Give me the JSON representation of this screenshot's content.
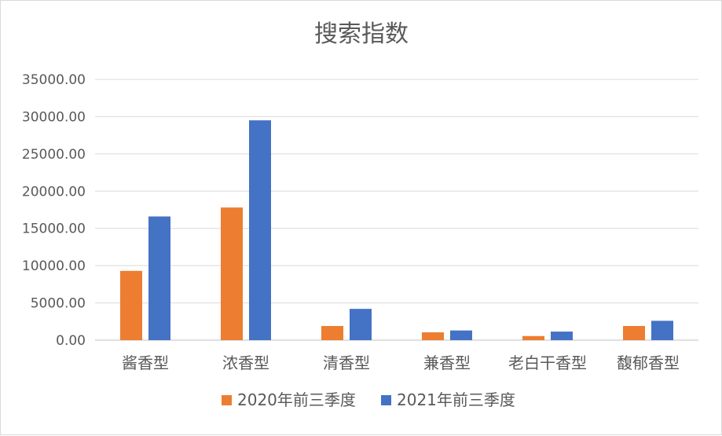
{
  "chart_data": {
    "type": "bar",
    "title": "搜索指数",
    "categories": [
      "酱香型",
      "浓香型",
      "清香型",
      "兼香型",
      "老白干香型",
      "馥郁香型"
    ],
    "series": [
      {
        "name": "2020年前三季度",
        "color": "#ED7D31",
        "values": [
          9300,
          17800,
          1900,
          1050,
          550,
          1900
        ]
      },
      {
        "name": "2021年前三季度",
        "color": "#4472C4",
        "values": [
          16600,
          29500,
          4200,
          1300,
          1150,
          2600
        ]
      }
    ],
    "yticks": [
      "0.00",
      "5000.00",
      "10000.00",
      "15000.00",
      "20000.00",
      "25000.00",
      "30000.00",
      "35000.00"
    ],
    "ylim": [
      0,
      35000
    ],
    "grid": true,
    "legend_position": "bottom"
  }
}
